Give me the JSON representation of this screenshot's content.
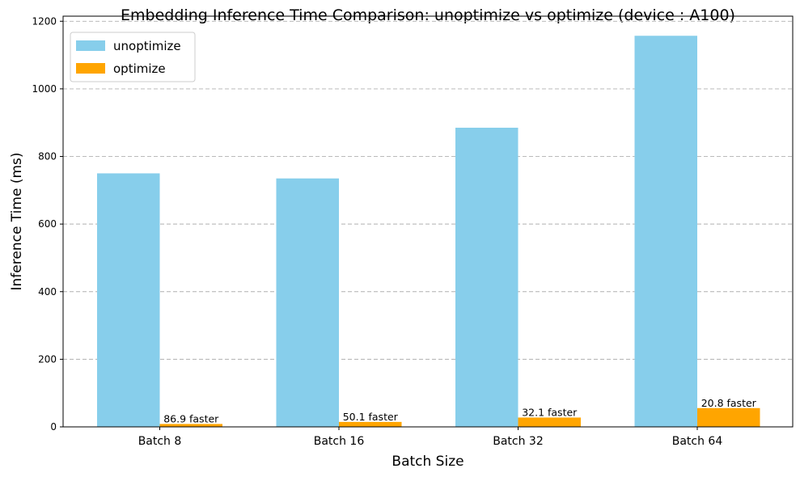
{
  "chart_data": {
    "type": "bar",
    "title": "Embedding Inference Time Comparison: unoptimize vs optimize (device : A100)",
    "xlabel": "Batch Size",
    "ylabel": "Inference Time (ms)",
    "categories": [
      "Batch 8",
      "Batch 16",
      "Batch 32",
      "Batch 64"
    ],
    "series": [
      {
        "name": "unoptimize",
        "color": "#87ceeb",
        "values": [
          750,
          735,
          885,
          1157
        ]
      },
      {
        "name": "optimize",
        "color": "#ffa500",
        "values": [
          8.6,
          14.7,
          27.6,
          55.6
        ]
      }
    ],
    "annotations": [
      "86.9 faster",
      "50.1 faster",
      "32.1 faster",
      "20.8 faster"
    ],
    "ylim": [
      0,
      1215
    ],
    "yticks": [
      0,
      200,
      400,
      600,
      800,
      1000,
      1200
    ],
    "grid": "y-dashed",
    "legend": "top-left"
  }
}
